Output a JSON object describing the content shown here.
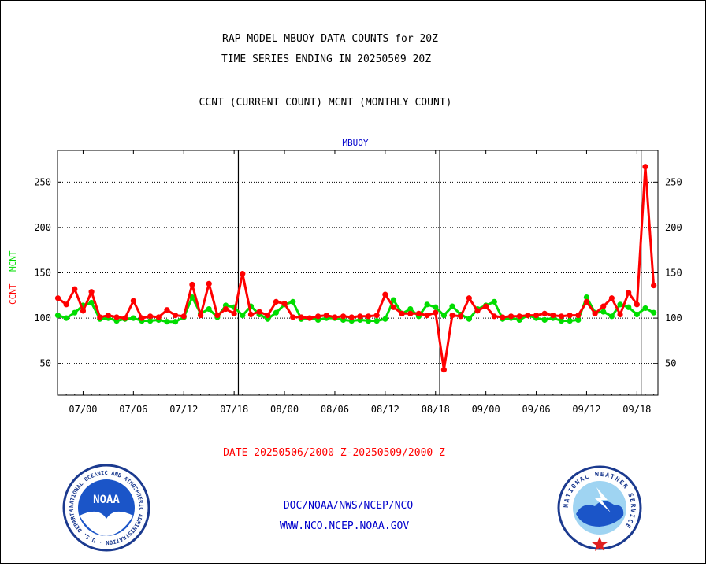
{
  "header": {
    "title_line1": "RAP MODEL MBUOY DATA COUNTS for 20Z",
    "title_line2": "TIME SERIES ENDING IN 20250509 20Z",
    "legend_line": "CCNT (CURRENT COUNT) MCNT (MONTHLY COUNT)"
  },
  "footer": {
    "date_range": "DATE 20250506/2000 Z-20250509/2000 Z",
    "link1": "DOC/NOAA/NWS/NCEP/NCO",
    "link2": "WWW.NCO.NCEP.NOAA.GOV",
    "noaa_logo_text": "NOAA",
    "noaa_ring_text": "NATIONAL OCEANIC AND ATMOSPHERIC ADMINISTRATION · U.S. DEPARTMENT OF COMMERCE ·",
    "nws_ring_text": "NATIONAL WEATHER SERVICE"
  },
  "colors": {
    "ccnt": "#ff0000",
    "mcnt": "#00dd00",
    "title": "#000000",
    "panel_title": "#0000cc",
    "date": "#ff0000",
    "links": "#0000cc"
  },
  "chart_data": {
    "type": "line",
    "title": "MBUOY",
    "ylabel_series": [
      "CCNT",
      "MCNT"
    ],
    "xlabel": "",
    "ylim": [
      15,
      285
    ],
    "yticks": [
      50,
      100,
      150,
      200,
      250
    ],
    "grid": true,
    "x_ticks": [
      {
        "label": "07/00",
        "index": 3
      },
      {
        "label": "07/06",
        "index": 9
      },
      {
        "label": "07/12",
        "index": 15
      },
      {
        "label": "07/18",
        "index": 21
      },
      {
        "label": "08/00",
        "index": 27
      },
      {
        "label": "08/06",
        "index": 33
      },
      {
        "label": "08/12",
        "index": 39
      },
      {
        "label": "08/18",
        "index": 45
      },
      {
        "label": "09/00",
        "index": 51
      },
      {
        "label": "09/06",
        "index": 57
      },
      {
        "label": "09/12",
        "index": 63
      },
      {
        "label": "09/18",
        "index": 69
      }
    ],
    "day_boundaries": [
      22,
      46,
      70
    ],
    "series": [
      {
        "name": "CCNT",
        "color": "#ff0000",
        "values": [
          122,
          115,
          132,
          108,
          129,
          101,
          103,
          101,
          100,
          119,
          100,
          102,
          101,
          109,
          103,
          102,
          137,
          103,
          138,
          103,
          110,
          105,
          149,
          104,
          107,
          103,
          118,
          116,
          101,
          101,
          100,
          102,
          103,
          101,
          102,
          101,
          102,
          102,
          103,
          126,
          112,
          105,
          105,
          105,
          103,
          106,
          43,
          103,
          102,
          122,
          108,
          113,
          102,
          101,
          102,
          102,
          103,
          103,
          105,
          103,
          102,
          103,
          103,
          118,
          105,
          113,
          122,
          104,
          128,
          115,
          267,
          136
        ]
      },
      {
        "name": "MCNT",
        "color": "#00dd00",
        "values": [
          103,
          100,
          106,
          114,
          117,
          99,
          100,
          97,
          99,
          100,
          97,
          97,
          98,
          96,
          96,
          101,
          123,
          105,
          110,
          101,
          114,
          112,
          103,
          113,
          104,
          99,
          106,
          115,
          118,
          99,
          100,
          98,
          100,
          100,
          98,
          97,
          98,
          97,
          97,
          99,
          120,
          105,
          110,
          102,
          115,
          112,
          103,
          113,
          104,
          99,
          110,
          114,
          118,
          99,
          100,
          98,
          103,
          100,
          98,
          100,
          97,
          97,
          98,
          123,
          106,
          107,
          102,
          115,
          112,
          104,
          111,
          106
        ]
      }
    ]
  }
}
